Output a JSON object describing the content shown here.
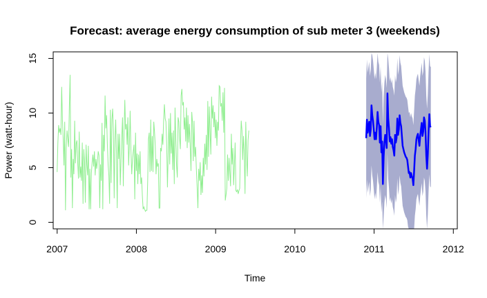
{
  "chart_data": {
    "type": "line",
    "title": "Forecast: average energy consumption of sub meter 3 (weekends)",
    "xlabel": "Time",
    "ylabel": "Power (watt-hour)",
    "xlim": [
      2006.95,
      2012.05
    ],
    "ylim": [
      -0.6,
      15.6
    ],
    "x_ticks": [
      2007,
      2008,
      2009,
      2010,
      2011,
      2012
    ],
    "x_tick_labels": [
      "2007",
      "2008",
      "2009",
      "2010",
      "2011",
      "2012"
    ],
    "y_ticks": [
      0,
      5,
      10,
      15
    ],
    "y_tick_labels": [
      "0",
      "5",
      "10",
      "15"
    ],
    "grid": false,
    "legend": "none",
    "colors": {
      "historical": "#90ee90",
      "forecast": "#0000ff",
      "interval": "#9ea3c9"
    },
    "historical": {
      "start": 2007.0,
      "step": 0.0096,
      "values": [
        4.6,
        7.3,
        8.9,
        8.2,
        8.6,
        8.0,
        12.4,
        9.4,
        7.6,
        5.2,
        9.2,
        1.1,
        6.8,
        8.4,
        7.6,
        6.9,
        10.6,
        13.5,
        4.1,
        6.7,
        1.3,
        5.8,
        4.4,
        9.3,
        5.4,
        7.2,
        7.5,
        5.5,
        4.0,
        8.3,
        4.1,
        5.1,
        3.8,
        7.3,
        1.7,
        6.7,
        5.5,
        1.8,
        7.1,
        5.3,
        4.3,
        7.0,
        1.2,
        4.9,
        1.2,
        4.5,
        5.5,
        6.2,
        5.1,
        6.5,
        4.3,
        5.8,
        4.9,
        5.6,
        6.5,
        6.1,
        1.3,
        5.3,
        3.8,
        9.1,
        1.2,
        8.0,
        6.5,
        11.6,
        8.6,
        9.8,
        7.2,
        5.3,
        4.3,
        1.7,
        10.3,
        3.6,
        9.4,
        10.4,
        8.3,
        2.2,
        7.5,
        9.4,
        6.2,
        1.3,
        8.1,
        5.8,
        8.1,
        3.4,
        5.7,
        7.8,
        9.6,
        3.3,
        8.4,
        11.2,
        8.5,
        9.0,
        7.1,
        9.6,
        5.2,
        7.0,
        10.2,
        6.7,
        4.4,
        5.8,
        6.5,
        7.1,
        2.1,
        8.2,
        4.7,
        6.3,
        3.5,
        6.2,
        4.4,
        6.5,
        3.5,
        4.1,
        2.4,
        1.2,
        1.4,
        1.2,
        1.0,
        1.1,
        1.1,
        3.8,
        7.6,
        8.2,
        4.6,
        9.4,
        4.7,
        7.9,
        4.6,
        9.2,
        8.3,
        7.0,
        4.4,
        5.8,
        5.1,
        5.4,
        1.3,
        1.3,
        6.8,
        6.5,
        8.1,
        7.1,
        9.4,
        10.8,
        9.5,
        9.2,
        7.2,
        3.2,
        6.4,
        9.5,
        5.3,
        10.0,
        6.3,
        8.2,
        4.8,
        8.4,
        3.5,
        10.5,
        7.6,
        5.2,
        4.1,
        9.6,
        9.2,
        7.7,
        6.7,
        11.6,
        12.2,
        10.7,
        11.0,
        8.5,
        9.6,
        7.4,
        10.5,
        6.8,
        9.8,
        7.3,
        9.0,
        6.9,
        4.7,
        10.1,
        9.1,
        5.6,
        9.3,
        6.0,
        6.9,
        4.8,
        3.2,
        1.3,
        4.9,
        3.8,
        5.5,
        2.5,
        4.3,
        2.7,
        5.9,
        4.2,
        7.2,
        5.3,
        8.0,
        4.8,
        11.1,
        6.0,
        10.6,
        8.3,
        6.2,
        11.5,
        9.5,
        10.7,
        8.7,
        10.1,
        7.7,
        9.4,
        7.0,
        9.2,
        8.4,
        12.5,
        12.4,
        10.6,
        10.9,
        9.3,
        11.9,
        8.2,
        12.3,
        2.0,
        2.5,
        3.1,
        6.2,
        3.8,
        5.9,
        4.6,
        3.3,
        8.1,
        5.3,
        6.8,
        3.4,
        5.2,
        7.3,
        2.9,
        2.8,
        3.0,
        2.6,
        2.9,
        3.1,
        7.0,
        9.3,
        8.4,
        5.7,
        7.9,
        6.5,
        2.6,
        9.2,
        6.0,
        4.2,
        7.5,
        8.4
      ]
    },
    "forecast": {
      "start": 2010.9,
      "step": 0.0096,
      "values": [
        7.7,
        9.4,
        8.2,
        8.7,
        9.2,
        7.9,
        8.5,
        10.7,
        9.8,
        9.3,
        8.5,
        7.6,
        8.2,
        7.6,
        8.7,
        10.1,
        9.2,
        8.9,
        7.3,
        8.8,
        6.4,
        7.4,
        3.5,
        6.0,
        7.3,
        8.0,
        7.6,
        6.8,
        11.8,
        9.5,
        8.6,
        7.4,
        7.8,
        7.2,
        7.6,
        6.9,
        6.6,
        6.1,
        8.0,
        7.3,
        7.7,
        9.5,
        8.0,
        8.5,
        9.8,
        9.1,
        8.8,
        7.9,
        7.0,
        6.7,
        6.4,
        6.2,
        6.0,
        5.9,
        5.7,
        5.1,
        4.5,
        4.6,
        4.1,
        4.5,
        4.2,
        4.0,
        3.4,
        4.7,
        6.1,
        6.7,
        7.6,
        7.9,
        8.1,
        7.5,
        7.0,
        7.9,
        8.5,
        9.1,
        7.9,
        8.3,
        9.6,
        9.3,
        8.3,
        6.1,
        4.9,
        6.2,
        8.3,
        9.9,
        8.8,
        8.7
      ],
      "lower": [
        2.2,
        3.9,
        2.7,
        3.2,
        3.7,
        2.4,
        3.0,
        5.2,
        4.3,
        3.8,
        3.0,
        2.1,
        2.7,
        2.1,
        3.2,
        4.6,
        3.7,
        3.4,
        1.8,
        3.3,
        0.9,
        1.9,
        -0.6,
        0.5,
        1.8,
        2.5,
        2.1,
        1.3,
        6.3,
        4.0,
        3.1,
        1.9,
        2.3,
        1.7,
        2.1,
        1.4,
        1.1,
        0.6,
        2.5,
        1.8,
        2.2,
        4.0,
        2.5,
        3.0,
        4.3,
        3.6,
        3.3,
        2.4,
        1.5,
        1.2,
        0.9,
        0.7,
        0.5,
        0.4,
        0.2,
        -0.4,
        -0.6,
        -0.6,
        -0.6,
        -0.6,
        -0.6,
        -0.6,
        -0.6,
        -0.6,
        0.6,
        1.2,
        2.1,
        2.4,
        2.6,
        2.0,
        1.5,
        2.4,
        3.0,
        3.6,
        2.4,
        2.8,
        4.1,
        3.8,
        2.8,
        0.6,
        -0.6,
        0.7,
        2.8,
        4.4,
        3.3,
        3.2
      ],
      "upper": [
        13.2,
        14.9,
        13.7,
        14.2,
        14.7,
        13.4,
        14.0,
        15.5,
        15.3,
        14.8,
        14.0,
        13.1,
        13.7,
        13.1,
        14.2,
        15.5,
        14.7,
        14.4,
        12.8,
        14.3,
        11.9,
        12.9,
        9.0,
        11.5,
        12.8,
        13.5,
        13.1,
        12.3,
        15.5,
        15.0,
        14.1,
        12.9,
        13.3,
        12.7,
        13.1,
        12.4,
        12.1,
        11.6,
        13.5,
        12.8,
        13.2,
        15.0,
        13.5,
        14.0,
        15.3,
        14.6,
        14.3,
        13.4,
        12.5,
        12.2,
        11.9,
        11.7,
        11.5,
        11.4,
        11.2,
        10.6,
        10.0,
        10.1,
        9.6,
        10.0,
        9.7,
        9.5,
        8.9,
        10.2,
        11.6,
        12.2,
        13.1,
        13.4,
        13.6,
        13.0,
        12.5,
        13.4,
        14.0,
        14.6,
        13.4,
        13.8,
        15.1,
        14.8,
        13.8,
        11.6,
        10.4,
        11.7,
        13.8,
        15.4,
        14.3,
        14.2
      ]
    }
  }
}
